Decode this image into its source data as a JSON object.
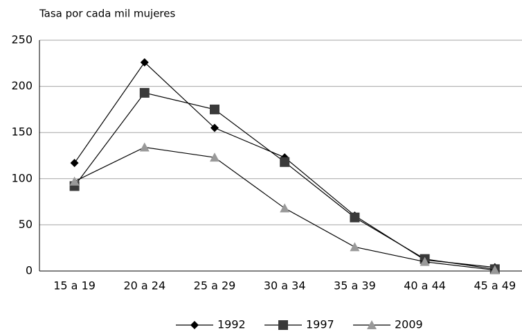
{
  "chart_data": {
    "type": "line",
    "title": "Tasa por cada mil mujeres",
    "categories": [
      "15 a 19",
      "20 a 24",
      "25 a 29",
      "30 a 34",
      "35 a 39",
      "40 a 44",
      "45 a 49"
    ],
    "series": [
      {
        "name": "1992",
        "color": "#000000",
        "marker": "diamond",
        "values": [
          117,
          226,
          155,
          123,
          60,
          12,
          4
        ]
      },
      {
        "name": "1997",
        "color": "#3a3a3a",
        "marker": "square",
        "values": [
          92,
          193,
          175,
          118,
          58,
          13,
          2
        ]
      },
      {
        "name": "2009",
        "color": "#999999",
        "marker": "triangle",
        "values": [
          97,
          134,
          123,
          68,
          26,
          10,
          1
        ]
      }
    ],
    "ylim": [
      0,
      250
    ],
    "yticks": [
      0,
      50,
      100,
      150,
      200,
      250
    ],
    "grid": true,
    "legend": "bottom"
  }
}
